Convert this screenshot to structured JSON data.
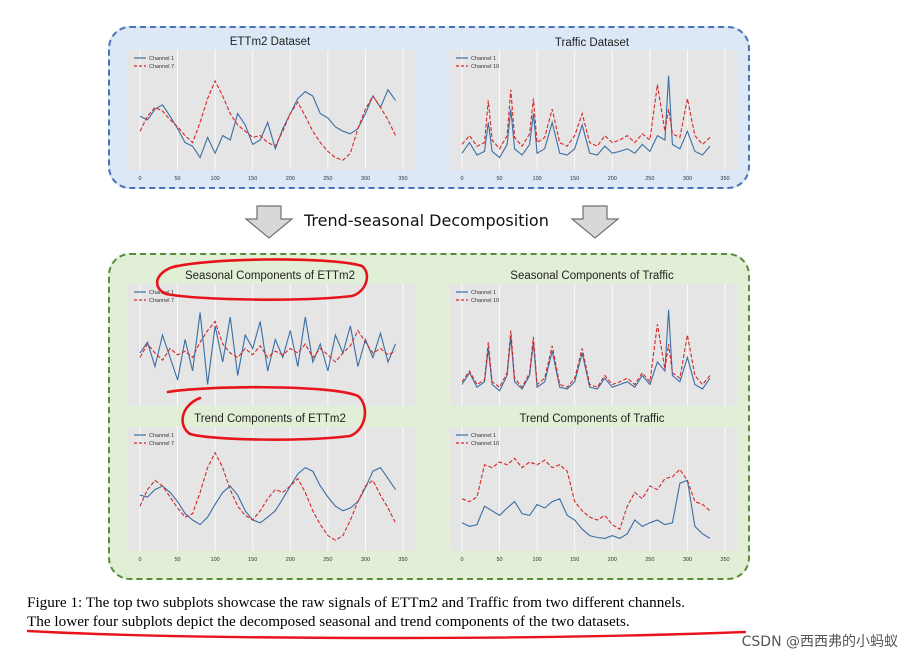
{
  "decomposition_label": "Trend-seasonal Decomposition",
  "caption": {
    "line1": "Figure 1: The top two subplots showcase the raw signals of ETTm2 and Traffic from two different channels.",
    "line2": "The lower four subplots depict the decomposed seasonal and trend components of the two datasets."
  },
  "watermark": "CSDN @西西弗的小蚂蚁",
  "colors": {
    "blue_series": "#3a6ea5",
    "red_series": "#d62728",
    "plot_bg": "#e5e5e5",
    "annotation": "#e8141c"
  },
  "chart_data": [
    {
      "type": "line",
      "title": "ETTm2 Dataset",
      "xticks": [
        "0",
        "50",
        "100",
        "150",
        "200",
        "250",
        "300",
        "350"
      ],
      "xlim": [
        0,
        350
      ],
      "legend_placement": "top-left",
      "series": [
        {
          "name": "Channel 1",
          "style": "solid",
          "color": "#3a6ea5",
          "x": [
            0,
            10,
            20,
            30,
            40,
            50,
            60,
            70,
            80,
            90,
            100,
            110,
            120,
            130,
            140,
            150,
            160,
            170,
            180,
            190,
            200,
            210,
            220,
            230,
            240,
            250,
            260,
            270,
            280,
            290,
            300,
            310,
            320,
            330,
            340
          ],
          "y": [
            0.52,
            0.48,
            0.6,
            0.65,
            0.52,
            0.38,
            0.22,
            0.18,
            0.05,
            0.28,
            0.1,
            0.3,
            0.25,
            0.55,
            0.42,
            0.2,
            0.25,
            0.45,
            0.15,
            0.38,
            0.55,
            0.72,
            0.8,
            0.75,
            0.55,
            0.5,
            0.4,
            0.35,
            0.32,
            0.38,
            0.55,
            0.75,
            0.62,
            0.82,
            0.7
          ]
        },
        {
          "name": "Channel 7",
          "style": "dashed",
          "color": "#d62728",
          "x": [
            0,
            10,
            20,
            30,
            40,
            50,
            60,
            70,
            80,
            90,
            100,
            110,
            120,
            130,
            140,
            150,
            160,
            170,
            180,
            190,
            200,
            210,
            220,
            230,
            240,
            250,
            260,
            270,
            280,
            290,
            300,
            310,
            320,
            330,
            340
          ],
          "y": [
            0.35,
            0.52,
            0.62,
            0.58,
            0.48,
            0.4,
            0.3,
            0.22,
            0.45,
            0.72,
            0.92,
            0.75,
            0.55,
            0.42,
            0.35,
            0.28,
            0.3,
            0.22,
            0.18,
            0.35,
            0.55,
            0.68,
            0.52,
            0.35,
            0.22,
            0.12,
            0.05,
            0.02,
            0.1,
            0.38,
            0.6,
            0.75,
            0.62,
            0.48,
            0.3
          ]
        }
      ]
    },
    {
      "type": "line",
      "title": "Traffic Dataset",
      "xticks": [
        "0",
        "50",
        "100",
        "150",
        "200",
        "250",
        "300",
        "350"
      ],
      "xlim": [
        0,
        350
      ],
      "legend_placement": "top-left",
      "series": [
        {
          "name": "Channel 1",
          "style": "solid",
          "color": "#3a6ea5",
          "x": [
            0,
            10,
            20,
            30,
            35,
            40,
            50,
            60,
            65,
            70,
            80,
            90,
            95,
            100,
            110,
            120,
            130,
            140,
            150,
            160,
            170,
            180,
            190,
            200,
            210,
            220,
            230,
            240,
            250,
            260,
            270,
            275,
            280,
            290,
            300,
            310,
            320,
            330
          ],
          "y": [
            0.1,
            0.22,
            0.08,
            0.12,
            0.45,
            0.12,
            0.05,
            0.2,
            0.6,
            0.15,
            0.08,
            0.2,
            0.55,
            0.1,
            0.15,
            0.45,
            0.1,
            0.08,
            0.15,
            0.42,
            0.1,
            0.08,
            0.18,
            0.1,
            0.12,
            0.15,
            0.1,
            0.2,
            0.12,
            0.3,
            0.25,
            0.98,
            0.2,
            0.15,
            0.35,
            0.12,
            0.08,
            0.18
          ]
        },
        {
          "name": "Channel 10",
          "style": "dashed",
          "color": "#d62728",
          "x": [
            0,
            10,
            20,
            30,
            35,
            40,
            50,
            60,
            65,
            70,
            80,
            90,
            95,
            100,
            110,
            120,
            130,
            140,
            150,
            160,
            170,
            180,
            190,
            200,
            210,
            220,
            230,
            240,
            250,
            260,
            270,
            275,
            280,
            290,
            300,
            310,
            320,
            330
          ],
          "y": [
            0.2,
            0.3,
            0.18,
            0.22,
            0.7,
            0.25,
            0.15,
            0.3,
            0.82,
            0.28,
            0.18,
            0.32,
            0.72,
            0.22,
            0.28,
            0.6,
            0.22,
            0.18,
            0.3,
            0.55,
            0.22,
            0.18,
            0.3,
            0.22,
            0.25,
            0.3,
            0.22,
            0.32,
            0.25,
            0.88,
            0.35,
            0.6,
            0.32,
            0.28,
            0.72,
            0.3,
            0.2,
            0.28
          ]
        }
      ]
    },
    {
      "type": "line",
      "title": "Seasonal Components of ETTm2",
      "xticks": [],
      "xlim": [
        0,
        350
      ],
      "legend_placement": "top-left",
      "series": [
        {
          "name": "Channel 1",
          "style": "solid",
          "color": "#3a6ea5",
          "x": [
            0,
            10,
            20,
            30,
            40,
            50,
            60,
            70,
            80,
            90,
            100,
            110,
            120,
            130,
            140,
            150,
            160,
            170,
            180,
            190,
            200,
            210,
            220,
            230,
            240,
            250,
            260,
            270,
            280,
            290,
            300,
            310,
            320,
            330,
            340
          ],
          "y": [
            0.5,
            0.62,
            0.35,
            0.7,
            0.45,
            0.2,
            0.65,
            0.3,
            0.95,
            0.15,
            0.8,
            0.4,
            0.9,
            0.25,
            0.7,
            0.55,
            0.85,
            0.3,
            0.65,
            0.45,
            0.75,
            0.35,
            0.9,
            0.4,
            0.6,
            0.3,
            0.7,
            0.5,
            0.8,
            0.35,
            0.65,
            0.45,
            0.72,
            0.4,
            0.6
          ]
        },
        {
          "name": "Channel 7",
          "style": "dashed",
          "color": "#d62728",
          "x": [
            0,
            10,
            20,
            30,
            40,
            50,
            60,
            70,
            80,
            90,
            100,
            110,
            120,
            130,
            140,
            150,
            160,
            170,
            180,
            190,
            200,
            210,
            220,
            230,
            240,
            250,
            260,
            270,
            280,
            290,
            300,
            310,
            320,
            330,
            340
          ],
          "y": [
            0.45,
            0.6,
            0.5,
            0.42,
            0.55,
            0.48,
            0.52,
            0.45,
            0.62,
            0.75,
            0.85,
            0.6,
            0.5,
            0.45,
            0.55,
            0.48,
            0.58,
            0.45,
            0.52,
            0.48,
            0.55,
            0.5,
            0.6,
            0.45,
            0.55,
            0.48,
            0.4,
            0.5,
            0.58,
            0.75,
            0.62,
            0.5,
            0.55,
            0.48,
            0.52
          ]
        }
      ]
    },
    {
      "type": "line",
      "title": "Seasonal Components of Traffic",
      "xticks": [],
      "xlim": [
        0,
        350
      ],
      "legend_placement": "top-left",
      "series": [
        {
          "name": "Channel 1",
          "style": "solid",
          "color": "#3a6ea5",
          "x": [
            0,
            10,
            20,
            30,
            35,
            40,
            50,
            60,
            65,
            70,
            80,
            90,
            95,
            100,
            110,
            120,
            130,
            140,
            150,
            160,
            170,
            180,
            190,
            200,
            210,
            220,
            230,
            240,
            250,
            260,
            270,
            275,
            280,
            290,
            300,
            310,
            320,
            330
          ],
          "y": [
            0.15,
            0.28,
            0.12,
            0.18,
            0.55,
            0.15,
            0.08,
            0.25,
            0.68,
            0.18,
            0.1,
            0.25,
            0.62,
            0.12,
            0.18,
            0.52,
            0.12,
            0.1,
            0.18,
            0.5,
            0.12,
            0.1,
            0.22,
            0.12,
            0.15,
            0.18,
            0.12,
            0.25,
            0.15,
            0.4,
            0.3,
            0.98,
            0.25,
            0.18,
            0.45,
            0.15,
            0.1,
            0.22
          ]
        },
        {
          "name": "Channel 10",
          "style": "dashed",
          "color": "#d62728",
          "x": [
            0,
            10,
            20,
            30,
            35,
            40,
            50,
            60,
            65,
            70,
            80,
            90,
            95,
            100,
            110,
            120,
            130,
            140,
            150,
            160,
            170,
            180,
            190,
            200,
            210,
            220,
            230,
            240,
            250,
            260,
            270,
            275,
            280,
            290,
            300,
            310,
            320,
            330
          ],
          "y": [
            0.18,
            0.3,
            0.15,
            0.2,
            0.62,
            0.18,
            0.12,
            0.28,
            0.75,
            0.22,
            0.12,
            0.28,
            0.68,
            0.15,
            0.22,
            0.58,
            0.15,
            0.12,
            0.22,
            0.55,
            0.15,
            0.12,
            0.25,
            0.15,
            0.18,
            0.22,
            0.15,
            0.28,
            0.18,
            0.82,
            0.32,
            0.6,
            0.28,
            0.22,
            0.7,
            0.25,
            0.15,
            0.25
          ]
        }
      ]
    },
    {
      "type": "line",
      "title": "Trend Components of ETTm2",
      "xticks": [
        "0",
        "50",
        "100",
        "150",
        "200",
        "250",
        "300",
        "350"
      ],
      "xlim": [
        0,
        350
      ],
      "legend_placement": "top-left",
      "series": [
        {
          "name": "Channel 1",
          "style": "solid",
          "color": "#3a6ea5",
          "x": [
            0,
            10,
            20,
            30,
            40,
            50,
            60,
            70,
            80,
            90,
            100,
            110,
            120,
            130,
            140,
            150,
            160,
            170,
            180,
            190,
            200,
            210,
            220,
            230,
            240,
            250,
            260,
            270,
            280,
            290,
            300,
            310,
            320,
            330,
            340
          ],
          "y": [
            0.52,
            0.5,
            0.58,
            0.62,
            0.55,
            0.45,
            0.32,
            0.25,
            0.2,
            0.28,
            0.42,
            0.55,
            0.62,
            0.52,
            0.35,
            0.25,
            0.22,
            0.28,
            0.35,
            0.48,
            0.62,
            0.75,
            0.82,
            0.78,
            0.62,
            0.5,
            0.4,
            0.35,
            0.38,
            0.45,
            0.6,
            0.78,
            0.82,
            0.7,
            0.58
          ]
        },
        {
          "name": "Channel 7",
          "style": "dashed",
          "color": "#d62728",
          "x": [
            0,
            10,
            20,
            30,
            40,
            50,
            60,
            70,
            80,
            90,
            100,
            110,
            120,
            130,
            140,
            150,
            160,
            170,
            180,
            190,
            200,
            210,
            220,
            230,
            240,
            250,
            260,
            270,
            280,
            290,
            300,
            310,
            320,
            330,
            340
          ],
          "y": [
            0.4,
            0.58,
            0.68,
            0.62,
            0.5,
            0.38,
            0.28,
            0.32,
            0.55,
            0.82,
            0.98,
            0.82,
            0.58,
            0.4,
            0.3,
            0.25,
            0.35,
            0.48,
            0.58,
            0.55,
            0.62,
            0.7,
            0.55,
            0.35,
            0.2,
            0.08,
            0.03,
            0.08,
            0.25,
            0.45,
            0.62,
            0.68,
            0.52,
            0.38,
            0.22
          ]
        }
      ]
    },
    {
      "type": "line",
      "title": "Trend Components of Traffic",
      "xticks": [
        "0",
        "50",
        "100",
        "150",
        "200",
        "250",
        "300",
        "350"
      ],
      "xlim": [
        0,
        350
      ],
      "legend_placement": "top-left",
      "series": [
        {
          "name": "Channel 1",
          "style": "solid",
          "color": "#3a6ea5",
          "x": [
            0,
            10,
            20,
            30,
            40,
            50,
            60,
            70,
            80,
            90,
            100,
            110,
            120,
            130,
            140,
            150,
            160,
            170,
            180,
            190,
            200,
            210,
            220,
            230,
            240,
            250,
            260,
            270,
            280,
            290,
            300,
            310,
            320,
            330
          ],
          "y": [
            0.22,
            0.18,
            0.2,
            0.4,
            0.35,
            0.3,
            0.38,
            0.45,
            0.32,
            0.3,
            0.42,
            0.38,
            0.45,
            0.48,
            0.3,
            0.25,
            0.15,
            0.08,
            0.06,
            0.05,
            0.08,
            0.05,
            0.1,
            0.25,
            0.18,
            0.22,
            0.25,
            0.2,
            0.22,
            0.65,
            0.68,
            0.18,
            0.1,
            0.05
          ]
        },
        {
          "name": "Channel 10",
          "style": "dashed",
          "color": "#d62728",
          "x": [
            0,
            10,
            20,
            30,
            40,
            50,
            60,
            70,
            80,
            90,
            100,
            110,
            120,
            130,
            140,
            150,
            160,
            170,
            180,
            190,
            200,
            210,
            220,
            230,
            240,
            250,
            260,
            270,
            280,
            290,
            300,
            310,
            320,
            330
          ],
          "y": [
            0.48,
            0.45,
            0.5,
            0.85,
            0.82,
            0.88,
            0.85,
            0.92,
            0.82,
            0.88,
            0.85,
            0.9,
            0.82,
            0.85,
            0.78,
            0.45,
            0.35,
            0.28,
            0.25,
            0.3,
            0.2,
            0.15,
            0.4,
            0.55,
            0.48,
            0.62,
            0.58,
            0.7,
            0.72,
            0.8,
            0.68,
            0.45,
            0.42,
            0.35
          ]
        }
      ]
    }
  ]
}
